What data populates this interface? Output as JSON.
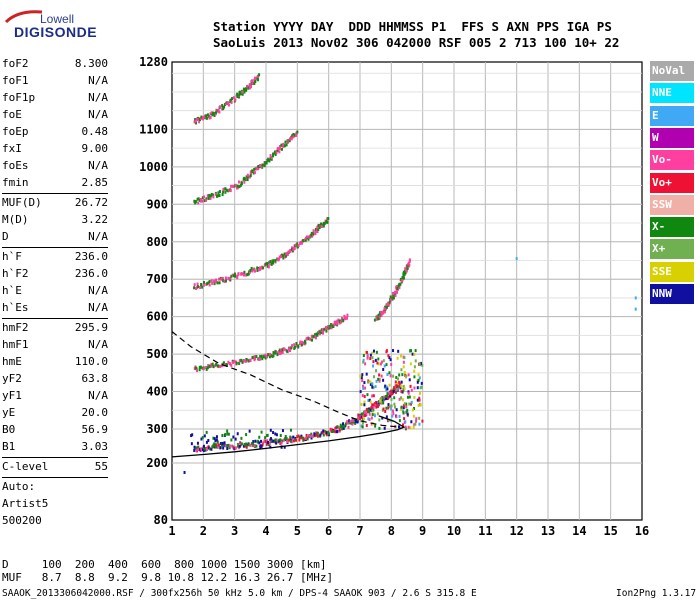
{
  "logo": {
    "line1": "Lowell",
    "line2": "DIGISONDE"
  },
  "header": {
    "line1": "Station YYYY DAY  DDD HHMMSS P1  FFS S AXN PPS IGA PS",
    "line2": "SaoLuis 2013 Nov02 306 042000 RSF 005 2 713 100 10+ 22"
  },
  "params": {
    "group1": [
      {
        "key": "foF2",
        "value": "8.300"
      },
      {
        "key": "foF1",
        "value": "N/A"
      },
      {
        "key": "foF1p",
        "value": "N/A"
      },
      {
        "key": "foE",
        "value": "N/A"
      },
      {
        "key": "foEp",
        "value": "0.48"
      },
      {
        "key": "fxI",
        "value": "9.00"
      },
      {
        "key": "foEs",
        "value": "N/A"
      },
      {
        "key": "fmin",
        "value": "2.85"
      }
    ],
    "group2": [
      {
        "key": "MUF(D)",
        "value": "26.72"
      },
      {
        "key": "M(D)",
        "value": "3.22"
      },
      {
        "key": "D",
        "value": "N/A"
      }
    ],
    "group3": [
      {
        "key": "h`F",
        "value": "236.0"
      },
      {
        "key": "h`F2",
        "value": "236.0"
      },
      {
        "key": "h`E",
        "value": "N/A"
      },
      {
        "key": "h`Es",
        "value": "N/A"
      }
    ],
    "group4": [
      {
        "key": "hmF2",
        "value": "295.9"
      },
      {
        "key": "hmF1",
        "value": "N/A"
      },
      {
        "key": "hmE",
        "value": "110.0"
      },
      {
        "key": "yF2",
        "value": "63.8"
      },
      {
        "key": "yF1",
        "value": "N/A"
      },
      {
        "key": "yE",
        "value": "20.0"
      },
      {
        "key": "B0",
        "value": "56.9"
      },
      {
        "key": "B1",
        "value": "3.03"
      }
    ],
    "clevel": {
      "key": "C-level",
      "value": "55"
    },
    "auto": [
      "Auto:",
      "Artist5",
      "500200"
    ]
  },
  "footer": {
    "d_row": "D     100  200  400  600  800 1000 1500 3000 [km]",
    "muf_row": "MUF   8.7  8.8  9.2  9.8 10.8 12.2 16.3 26.7 [MHz]",
    "file_line": "SAAOK_2013306042000.RSF / 300fx256h 50 kHz 5.0 km / DPS-4 SAAOK 903 / 2.6 S 315.8 E",
    "version": "Ion2Png 1.3.17"
  },
  "legend": [
    {
      "label": "NoVal",
      "color": "#aaaaaa"
    },
    {
      "label": "NNE",
      "color": "#00e5ff"
    },
    {
      "label": "E",
      "color": "#3fa9f5"
    },
    {
      "label": "W",
      "color": "#b000b0"
    },
    {
      "label": "Vo-",
      "color": "#ff3fa0"
    },
    {
      "label": "Vo+",
      "color": "#ee1133"
    },
    {
      "label": "SSW",
      "color": "#f0b0a8"
    },
    {
      "label": "X-",
      "color": "#108810"
    },
    {
      "label": "X+",
      "color": "#70b050"
    },
    {
      "label": "SSE",
      "color": "#d8d000"
    },
    {
      "label": "NNW",
      "color": "#1010a0"
    }
  ],
  "chart_data": {
    "type": "scatter",
    "title": "",
    "xlabel": "",
    "ylabel": "",
    "xlim": [
      1,
      16
    ],
    "ylim": [
      80,
      1280
    ],
    "x_ticks": [
      1,
      2,
      3,
      4,
      5,
      6,
      7,
      8,
      9,
      10,
      11,
      12,
      13,
      14,
      15,
      16
    ],
    "y_ticks": [
      80,
      200,
      300,
      400,
      500,
      600,
      700,
      800,
      900,
      1000,
      1100,
      1280
    ],
    "grid": true,
    "y_scale_note": "non-linear height axis (tick spacing narrows at low heights)",
    "traces": [
      {
        "name": "F-trace 1st hop",
        "colors": [
          "#ee1133",
          "#108810",
          "#1010a0",
          "#ff3fa0"
        ],
        "points": [
          [
            1.7,
            240
          ],
          [
            2.2,
            245
          ],
          [
            3,
            250
          ],
          [
            3.8,
            258
          ],
          [
            4.5,
            265
          ],
          [
            5.2,
            275
          ],
          [
            5.8,
            285
          ],
          [
            6.3,
            300
          ],
          [
            6.8,
            320
          ],
          [
            7.2,
            345
          ],
          [
            7.6,
            370
          ],
          [
            8.0,
            395
          ],
          [
            8.3,
            420
          ]
        ]
      },
      {
        "name": "F-trace 2nd hop",
        "colors": [
          "#ff3fa0",
          "#108810"
        ],
        "points": [
          [
            1.7,
            460
          ],
          [
            2.5,
            470
          ],
          [
            3.3,
            480
          ],
          [
            4.0,
            495
          ],
          [
            4.6,
            510
          ],
          [
            5.2,
            530
          ],
          [
            5.7,
            555
          ],
          [
            6.2,
            580
          ],
          [
            6.6,
            600
          ]
        ]
      },
      {
        "name": "F-trace 3rd hop",
        "colors": [
          "#ff3fa0",
          "#108810"
        ],
        "points": [
          [
            1.7,
            680
          ],
          [
            2.5,
            695
          ],
          [
            3.3,
            715
          ],
          [
            4.0,
            735
          ],
          [
            4.6,
            765
          ],
          [
            5.1,
            795
          ],
          [
            5.6,
            830
          ],
          [
            6.0,
            860
          ]
        ]
      },
      {
        "name": "F-trace 4th hop",
        "colors": [
          "#ff3fa0",
          "#108810"
        ],
        "points": [
          [
            1.7,
            905
          ],
          [
            2.4,
            925
          ],
          [
            3.1,
            950
          ],
          [
            3.6,
            985
          ],
          [
            4.1,
            1020
          ],
          [
            4.6,
            1060
          ],
          [
            5.0,
            1090
          ]
        ]
      },
      {
        "name": "F-trace 5th hop",
        "colors": [
          "#ff3fa0",
          "#108810"
        ],
        "points": [
          [
            1.7,
            1120
          ],
          [
            2.3,
            1140
          ],
          [
            2.9,
            1175
          ],
          [
            3.4,
            1210
          ],
          [
            3.8,
            1245
          ]
        ]
      },
      {
        "name": "high-frequency trace",
        "colors": [
          "#ff3fa0",
          "#108810"
        ],
        "points": [
          [
            7.5,
            590
          ],
          [
            7.8,
            620
          ],
          [
            8.1,
            660
          ],
          [
            8.4,
            710
          ],
          [
            8.6,
            750
          ]
        ]
      }
    ],
    "profile_solid": {
      "color": "#000000",
      "points": [
        [
          1,
          218
        ],
        [
          2,
          225
        ],
        [
          3,
          233
        ],
        [
          4,
          243
        ],
        [
          5,
          254
        ],
        [
          6,
          265
        ],
        [
          7,
          278
        ],
        [
          7.8,
          290
        ],
        [
          8.2,
          298
        ],
        [
          8.4,
          305
        ],
        [
          8.1,
          320
        ],
        [
          7.6,
          335
        ]
      ]
    },
    "profile_dashed": {
      "color": "#000000",
      "points": [
        [
          1,
          560
        ],
        [
          1.6,
          520
        ],
        [
          2.5,
          475
        ],
        [
          3.5,
          445
        ],
        [
          4.5,
          405
        ],
        [
          5.5,
          375
        ],
        [
          6.3,
          345
        ],
        [
          7,
          322
        ],
        [
          7.7,
          310
        ],
        [
          8.3,
          305
        ]
      ]
    }
  }
}
